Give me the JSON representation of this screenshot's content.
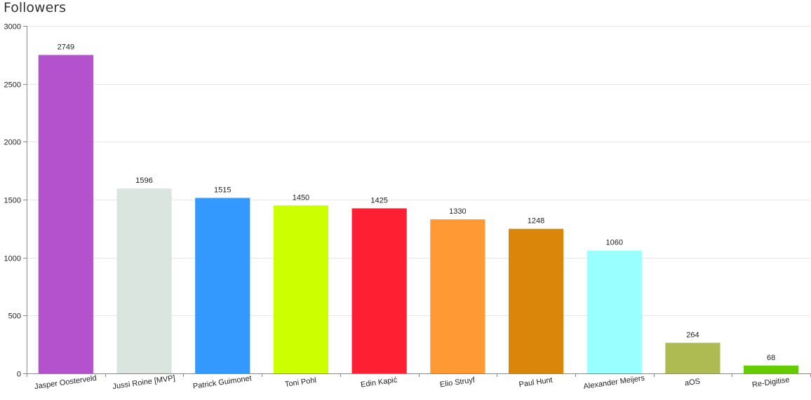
{
  "chart_data": {
    "type": "bar",
    "title": "Followers",
    "xlabel": "",
    "ylabel": "",
    "ylim": [
      0,
      3000
    ],
    "yticks": [
      0,
      500,
      1000,
      1500,
      2000,
      2500,
      3000
    ],
    "grid": true,
    "categories": [
      "Jasper Oosterveld",
      "Jussi Roine [MVP]",
      "Patrick Guimonet",
      "Toni Pohl",
      "Edin Kapić",
      "Elio Struyf",
      "Paul Hunt",
      "Alexander Meijers",
      "aOS",
      "Re-Digitise"
    ],
    "values": [
      2749,
      1596,
      1515,
      1450,
      1425,
      1330,
      1248,
      1060,
      264,
      68
    ],
    "colors": [
      "#b452cd",
      "#dae5e0",
      "#3399ff",
      "#ccff00",
      "#ff1f33",
      "#ff9933",
      "#d9860a",
      "#99ffff",
      "#adbb52",
      "#66cc00"
    ]
  }
}
